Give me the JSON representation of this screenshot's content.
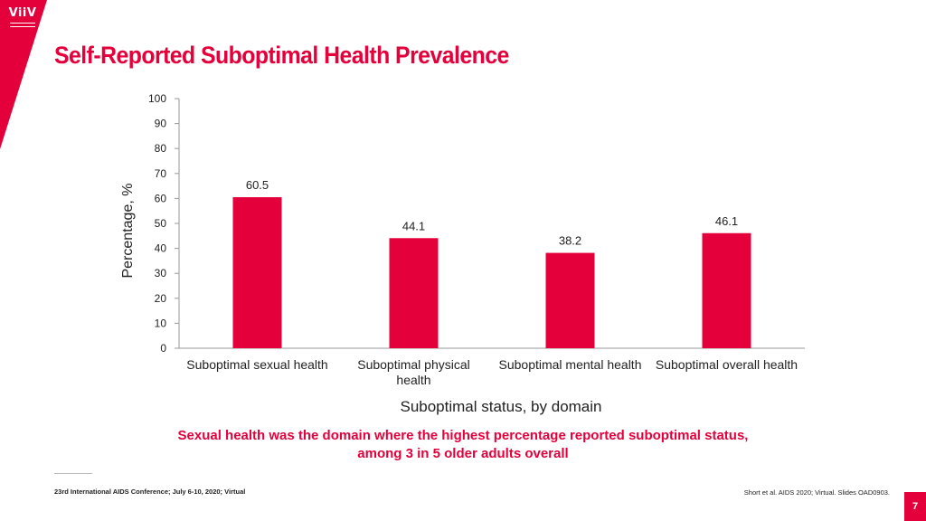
{
  "brand": {
    "logo_text": "ViiV",
    "accent_color": "#e4003b",
    "logo_icon": "viiv-logo-icon"
  },
  "slide": {
    "title": "Self-Reported Suboptimal Health Prevalence",
    "conclusion_line1": "Sexual health was the domain where the highest percentage reported suboptimal status,",
    "conclusion_line2": "among 3 in 5 older adults overall",
    "footer_left": "23rd International AIDS Conference; July 6-10, 2020; Virtual",
    "footer_right": "Short et al. AIDS 2020; Virtual. Slides OAD0903.",
    "page_number": "7"
  },
  "chart_data": {
    "type": "bar",
    "categories": [
      "Suboptimal sexual health",
      "Suboptimal physical health",
      "Suboptimal mental health",
      "Suboptimal overall health"
    ],
    "category_lines": [
      [
        "Suboptimal sexual health"
      ],
      [
        "Suboptimal physical",
        "health"
      ],
      [
        "Suboptimal mental health"
      ],
      [
        "Suboptimal overall health"
      ]
    ],
    "values": [
      60.5,
      44.1,
      38.2,
      46.1
    ],
    "data_labels": [
      "60.5",
      "44.1",
      "38.2",
      "46.1"
    ],
    "xlabel": "Suboptimal status, by domain",
    "ylabel": "Percentage, %",
    "ylim": [
      0,
      100
    ],
    "yticks": [
      0,
      10,
      20,
      30,
      40,
      50,
      60,
      70,
      80,
      90,
      100
    ],
    "bar_color": "#e4003b",
    "grid": false
  }
}
